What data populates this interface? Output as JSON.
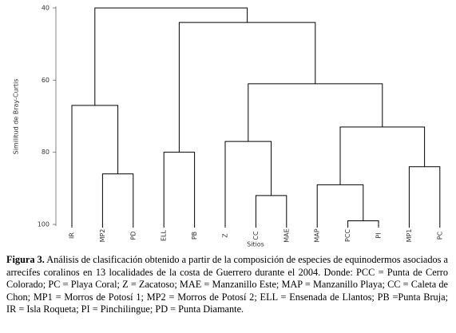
{
  "chart_data": {
    "type": "dendrogram",
    "y_label": "Similitud de Bray-Curtis",
    "x_label": "Sitios",
    "ylim": [
      40,
      100
    ],
    "yticks": [
      40,
      60,
      80,
      100
    ],
    "color": "#000000",
    "tree": {
      "height": 40,
      "children": [
        {
          "height": 67,
          "children": [
            {
              "label": "IR"
            },
            {
              "height": 86,
              "children": [
                {
                  "label": "MP2"
                },
                {
                  "label": "PD"
                }
              ]
            }
          ]
        },
        {
          "height": 44,
          "children": [
            {
              "height": 80,
              "children": [
                {
                  "label": "ELL"
                },
                {
                  "label": "PB"
                }
              ]
            },
            {
              "height": 61,
              "children": [
                {
                  "height": 77,
                  "children": [
                    {
                      "label": "Z"
                    },
                    {
                      "height": 92,
                      "children": [
                        {
                          "label": "CC"
                        },
                        {
                          "label": "MAE"
                        }
                      ]
                    }
                  ]
                },
                {
                  "height": 73,
                  "children": [
                    {
                      "height": 89,
                      "children": [
                        {
                          "label": "MAP"
                        },
                        {
                          "height": 99,
                          "children": [
                            {
                              "label": "PCC"
                            },
                            {
                              "label": "PI"
                            }
                          ]
                        }
                      ]
                    },
                    {
                      "height": 84,
                      "children": [
                        {
                          "label": "MP1"
                        },
                        {
                          "label": "PC"
                        }
                      ]
                    }
                  ]
                }
              ]
            }
          ]
        }
      ]
    }
  },
  "caption": {
    "label": "Figura 3.",
    "text": "Análisis de clasificación obtenido a partir de la composición de especies de equinodermos asociados a arrecifes coralinos en 13 localidades de la costa de Guerrero durante el 2004. Donde: PCC = Punta de Cerro Colorado; PC = Playa Coral; Z = Zacatoso; MAE = Manzanillo Este; MAP = Manzanillo Playa; CC = Caleta de Chon; MP1 = Morros de Potosí 1; MP2 = Morros de Potosí 2; ELL = Ensenada de Llantos; PB =Punta Bruja; IR = Isla Roqueta; PI = Pinchilingue; PD = Punta Diamante."
  }
}
